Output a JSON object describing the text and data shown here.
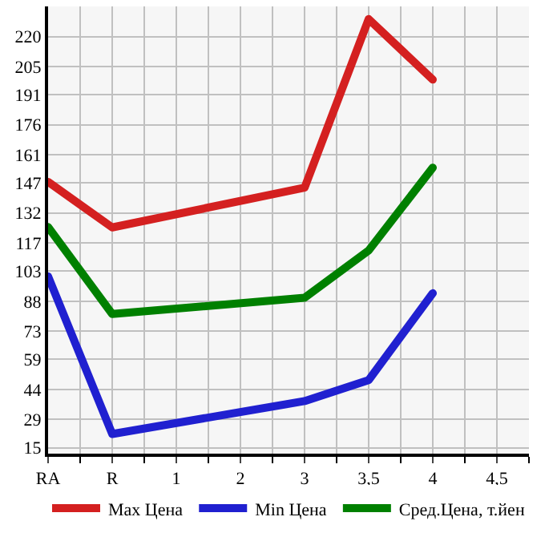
{
  "chart_data": {
    "type": "line",
    "categories": [
      "RA",
      "R",
      "1",
      "2",
      "3",
      "3,5",
      "4",
      "4,5"
    ],
    "series": [
      {
        "name": "Max Цена",
        "color": "#d42020",
        "values": [
          147.5,
          124.8,
          null,
          null,
          144.6,
          228.7,
          198.5,
          null
        ]
      },
      {
        "name": "Min Цена",
        "color": "#2020d0",
        "values": [
          100.4,
          21.8,
          null,
          null,
          38.2,
          48.7,
          92,
          null
        ]
      },
      {
        "name": "Сред.Цена, т.йен",
        "color": "#008000",
        "values": [
          125,
          81.6,
          null,
          null,
          89.7,
          113.3,
          154.6,
          null
        ]
      }
    ],
    "ylim": [
      12,
      235
    ],
    "yticks": [
      15,
      29,
      44,
      59,
      73,
      88,
      103,
      117,
      132,
      147,
      161,
      176,
      191,
      205,
      220
    ],
    "grid": true,
    "legend": "bottom",
    "marker": "none",
    "line_style": "solid"
  }
}
